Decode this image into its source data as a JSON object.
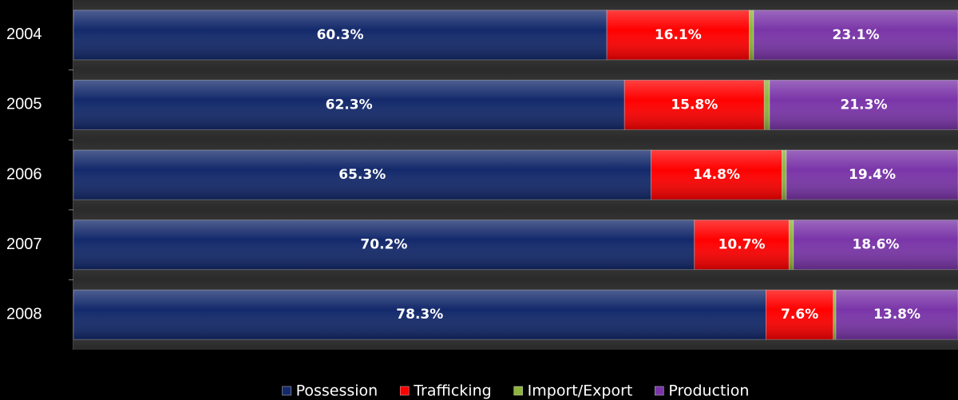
{
  "chart_data": {
    "type": "stacked-barh",
    "categories": [
      "2004",
      "2005",
      "2006",
      "2007",
      "2008"
    ],
    "xlim": [
      0,
      100
    ],
    "series": [
      {
        "name": "Possession",
        "color": "#13296b",
        "values": [
          60.3,
          62.3,
          65.3,
          70.2,
          78.3
        ],
        "value_labels": [
          "60.3%",
          "62.3%",
          "65.3%",
          "70.2%",
          "78.3%"
        ]
      },
      {
        "name": "Trafficking",
        "color": "#ff0000",
        "values": [
          16.1,
          15.8,
          14.8,
          10.7,
          7.6
        ],
        "value_labels": [
          "16.1%",
          "15.8%",
          "14.8%",
          "10.7%",
          "7.6%"
        ]
      },
      {
        "name": "Import/Export",
        "color": "#8db43c",
        "values": [
          0.5,
          0.6,
          0.5,
          0.5,
          0.3
        ]
      },
      {
        "name": "Production",
        "color": "#7a35a8",
        "values": [
          23.1,
          21.3,
          19.4,
          18.6,
          13.8
        ],
        "value_labels": [
          "23.1%",
          "21.3%",
          "19.4%",
          "18.6%",
          "13.8%"
        ]
      }
    ],
    "legend": "bottom"
  }
}
